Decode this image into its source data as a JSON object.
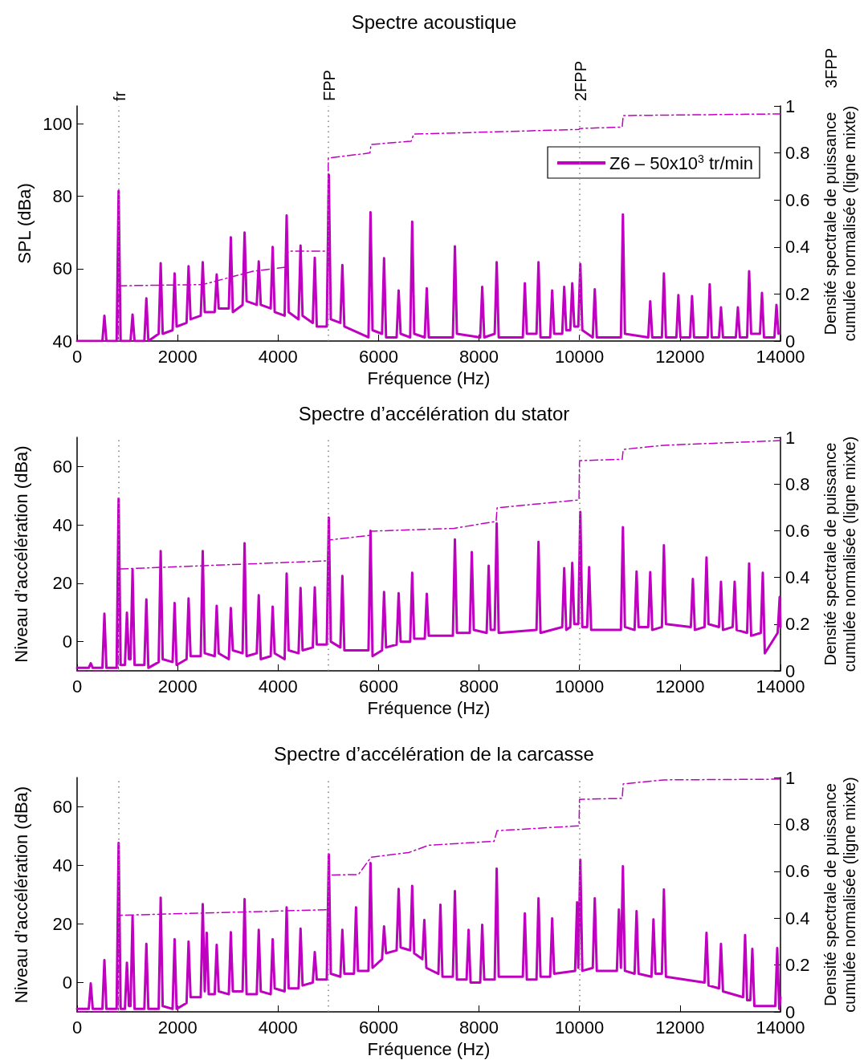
{
  "chart_data": [
    {
      "type": "line",
      "title": "Spectre acoustique",
      "xlabel": "Fréquence (Hz)",
      "ylabel": "SPL (dBa)",
      "y2label": "Densité spectrale de puissance\ncumulée normalisée (ligne mixte)",
      "xlim": [
        0,
        14000
      ],
      "xticks": [
        0,
        2000,
        4000,
        6000,
        8000,
        10000,
        12000,
        14000
      ],
      "ylim": [
        40,
        105
      ],
      "yticks": [
        40,
        60,
        80,
        100
      ],
      "y2lim": [
        0,
        1
      ],
      "y2ticks": [
        0,
        0.2,
        0.4,
        0.6,
        0.8,
        1
      ],
      "grid": false,
      "legend": "top right",
      "marker": "none",
      "annotations": [
        "3FPP"
      ],
      "ref_lines": [
        {
          "axis": "x",
          "value": 833,
          "label": "fr",
          "color": "#808080",
          "line_style": "dotted"
        },
        {
          "axis": "x",
          "value": 5000,
          "label": "FPP",
          "color": "#808080",
          "line_style": "dotted"
        },
        {
          "axis": "x",
          "value": 10000,
          "label": "2FPP",
          "color": "#808080",
          "line_style": "dotted"
        }
      ],
      "series": [
        {
          "name": "Z6 – 50x10$^{3}$ tr/min",
          "color": "#c000c0",
          "line_style": "solid",
          "x": [
            0,
            504,
            544,
            584,
            787,
            827,
            867,
            1064,
            1104,
            1144,
            1339,
            1379,
            1419,
            1624,
            1664,
            1704,
            1901,
            1941,
            1981,
            2179,
            2219,
            2259,
            2461,
            2501,
            2541,
            2739,
            2779,
            2819,
            3020,
            3060,
            3100,
            3294,
            3334,
            3374,
            3576,
            3616,
            3656,
            3853,
            3893,
            3933,
            4131,
            4171,
            4211,
            4408,
            4448,
            4488,
            4691,
            4731,
            4771,
            4970,
            5010,
            5050,
            5240,
            5280,
            5320,
            5800,
            5840,
            5880,
            6070,
            6110,
            6150,
            6360,
            6400,
            6440,
            6630,
            6670,
            6710,
            6920,
            6960,
            7000,
            7480,
            7520,
            7560,
            8024,
            8064,
            8104,
            8312,
            8352,
            8392,
            8872,
            8912,
            8952,
            9144,
            9184,
            9224,
            9416,
            9456,
            9496,
            9656,
            9696,
            9736,
            9816,
            9856,
            9896,
            9976,
            10016,
            10056,
            10264,
            10304,
            10344,
            10824,
            10864,
            10904,
            11368,
            11408,
            11448,
            11640,
            11680,
            11720,
            11928,
            11968,
            12008,
            12200,
            12240,
            12280,
            12552,
            12592,
            12632,
            12776,
            12816,
            12856,
            13112,
            13152,
            13192,
            13336,
            13376,
            13416,
            13592,
            13632,
            13672,
            13880,
            13920,
            13960
          ],
          "values": [
            40,
            40,
            47,
            40,
            40,
            81.5,
            40,
            40,
            47.3,
            40,
            40,
            51.8,
            40,
            42,
            61.5,
            42,
            43,
            58.7,
            44,
            45,
            60.7,
            46,
            47,
            61.8,
            48,
            48,
            58.4,
            49,
            49,
            68.7,
            48,
            50,
            70,
            51,
            50,
            62,
            50,
            49,
            66,
            48,
            47,
            74.7,
            48,
            46,
            66.4,
            47,
            45,
            63,
            44,
            44,
            86,
            46,
            45,
            61,
            44,
            41,
            75.6,
            43,
            42,
            62.9,
            41,
            41,
            54,
            42,
            41,
            73,
            42,
            41,
            54.6,
            41,
            41,
            66.2,
            42,
            41,
            55,
            41,
            42,
            61.8,
            41,
            41,
            56,
            42,
            42,
            61.8,
            41,
            41,
            54,
            42,
            42,
            55,
            43,
            43,
            56,
            44,
            44,
            61.3,
            43,
            41,
            54.3,
            41,
            41,
            75,
            42,
            41,
            51,
            41,
            41,
            58.7,
            41,
            41,
            52.7,
            41,
            41,
            52.4,
            41,
            41,
            55.7,
            41,
            41,
            49.3,
            41,
            41,
            49.3,
            41,
            41,
            59.3,
            42,
            42,
            53.3,
            41,
            41,
            50,
            42
          ]
        },
        {
          "color": "#c000c0",
          "axis": "y2",
          "line_style": "dashed",
          "x": [
            0,
            820,
            830,
            2500,
            3500,
            4150,
            4200,
            4990,
            5000,
            5830,
            5850,
            6650,
            6700,
            9990,
            10000,
            10850,
            10870,
            14000
          ],
          "values": [
            0,
            0,
            0.235,
            0.24,
            0.297,
            0.314,
            0.382,
            0.382,
            0.778,
            0.8,
            0.836,
            0.85,
            0.88,
            0.9,
            0.904,
            0.91,
            0.959,
            0.966
          ]
        }
      ]
    },
    {
      "type": "line",
      "title": "Spectre d’accélération du stator",
      "xlabel": "Fréquence (Hz)",
      "ylabel": "Niveau d’accélération (dBa)",
      "y2label": "Densité spectrale de puissance\ncumulée normalisée (ligne mixte)",
      "xlim": [
        0,
        14000
      ],
      "xticks": [
        0,
        2000,
        4000,
        6000,
        8000,
        10000,
        12000,
        14000
      ],
      "ylim": [
        -10,
        70
      ],
      "yticks": [
        0,
        20,
        40,
        60
      ],
      "y2lim": [
        0,
        1
      ],
      "y2ticks": [
        0,
        0.2,
        0.4,
        0.6,
        0.8,
        1
      ],
      "grid": false,
      "marker": "none",
      "ref_lines": [
        {
          "axis": "x",
          "value": 833,
          "label": null,
          "color": "#808080",
          "line_style": "dotted"
        },
        {
          "axis": "x",
          "value": 5000,
          "label": null,
          "color": "#808080",
          "line_style": "dotted"
        },
        {
          "axis": "x",
          "value": 10000,
          "label": null,
          "color": "#808080",
          "line_style": "dotted"
        }
      ],
      "series": [
        {
          "color": "#c000c0",
          "line_style": "solid",
          "x": [
            0,
            232,
            272,
            312,
            504,
            544,
            584,
            787,
            827,
            867,
            952,
            992,
            1032,
            1064,
            1104,
            1144,
            1339,
            1379,
            1419,
            1624,
            1664,
            1704,
            1901,
            1941,
            1981,
            2179,
            2219,
            2259,
            2461,
            2501,
            2541,
            2739,
            2779,
            2819,
            3020,
            3060,
            3100,
            3294,
            3334,
            3374,
            3576,
            3616,
            3656,
            3853,
            3893,
            3933,
            4131,
            4171,
            4211,
            4408,
            4448,
            4488,
            4691,
            4731,
            4771,
            4970,
            5010,
            5050,
            5240,
            5280,
            5320,
            5800,
            5840,
            5880,
            6070,
            6110,
            6150,
            6360,
            6400,
            6440,
            6630,
            6670,
            6710,
            6920,
            6960,
            7000,
            7480,
            7520,
            7560,
            7816,
            7856,
            7896,
            8152,
            8192,
            8232,
            8312,
            8352,
            8392,
            9144,
            9184,
            9224,
            9656,
            9696,
            9736,
            9816,
            9856,
            9896,
            9976,
            10016,
            10056,
            10152,
            10192,
            10232,
            10824,
            10864,
            10904,
            11096,
            11136,
            11176,
            11368,
            11408,
            11448,
            11640,
            11680,
            11720,
            12216,
            12256,
            12296,
            12488,
            12528,
            12568,
            12776,
            12816,
            12856,
            13048,
            13088,
            13128,
            13336,
            13376,
            13416,
            13608,
            13648,
            13688,
            13944,
            13984,
            14000
          ],
          "values": [
            -9,
            -9,
            -7.4,
            -9,
            -9,
            9.6,
            -9,
            -9,
            49,
            -8,
            -8,
            9.9,
            -6,
            -6,
            24.7,
            -8,
            -8,
            14.5,
            -9,
            -7,
            31,
            -6,
            -7,
            13.2,
            -8,
            -6,
            14.8,
            -5,
            -5,
            31,
            -4,
            -5,
            12.3,
            -4,
            -6,
            11.5,
            -3,
            -4,
            33.7,
            -5,
            -4,
            15.9,
            -6,
            -5,
            12,
            -4,
            -6,
            23.3,
            -3,
            -4,
            18.4,
            -3,
            -2,
            18.6,
            -1,
            -1,
            42.5,
            0,
            -2,
            22.5,
            -3,
            -3,
            38,
            -5,
            -3,
            17,
            -2,
            -1,
            16.6,
            0,
            0,
            23.6,
            1,
            1,
            16.4,
            2,
            2,
            35,
            3,
            3,
            30.7,
            4,
            3,
            26,
            4,
            4,
            40.5,
            3,
            4,
            34.2,
            3,
            5,
            25.2,
            4,
            5,
            27,
            6,
            6,
            44.4,
            5,
            5,
            25.5,
            4,
            4,
            39.2,
            5,
            4,
            24,
            5,
            5,
            23.8,
            4,
            5,
            33,
            6,
            5,
            21.5,
            4,
            5,
            28.8,
            6,
            5,
            20.5,
            4,
            5,
            20.5,
            4,
            3,
            26.8,
            2,
            3,
            23.6,
            -4,
            3,
            15.3,
            5
          ]
        },
        {
          "color": "#c000c0",
          "axis": "y2",
          "line_style": "dashed",
          "x": [
            0,
            820,
            830,
            4990,
            5000,
            5830,
            5850,
            7500,
            8340,
            8360,
            9990,
            10000,
            10850,
            10870,
            11680,
            14000
          ],
          "values": [
            0,
            0,
            0.436,
            0.471,
            0.56,
            0.58,
            0.598,
            0.61,
            0.64,
            0.698,
            0.732,
            0.9,
            0.906,
            0.948,
            0.966,
            0.986
          ]
        }
      ]
    },
    {
      "type": "line",
      "title": "Spectre d’accélération de la carcasse",
      "xlabel": "Fréquence (Hz)",
      "ylabel": "Niveau d’accélération (dBa)",
      "y2label": "Densité spectrale de puissance\ncumulée normalisée (ligne mixte)",
      "xlim": [
        0,
        14000
      ],
      "xticks": [
        0,
        2000,
        4000,
        6000,
        8000,
        10000,
        12000,
        14000
      ],
      "ylim": [
        -10,
        70
      ],
      "yticks": [
        0,
        20,
        40,
        60
      ],
      "y2lim": [
        0,
        1
      ],
      "y2ticks": [
        0,
        0.2,
        0.4,
        0.6,
        0.8,
        1
      ],
      "grid": false,
      "marker": "none",
      "ref_lines": [
        {
          "axis": "x",
          "value": 833,
          "label": null,
          "color": "#808080",
          "line_style": "dotted"
        },
        {
          "axis": "x",
          "value": 5000,
          "label": null,
          "color": "#808080",
          "line_style": "dotted"
        },
        {
          "axis": "x",
          "value": 10000,
          "label": null,
          "color": "#808080",
          "line_style": "dotted"
        }
      ],
      "series": [
        {
          "color": "#c000c0",
          "line_style": "solid",
          "x": [
            0,
            232,
            272,
            312,
            504,
            544,
            584,
            787,
            827,
            867,
            952,
            992,
            1032,
            1064,
            1104,
            1144,
            1339,
            1379,
            1419,
            1624,
            1664,
            1704,
            1901,
            1941,
            1981,
            2179,
            2219,
            2259,
            2461,
            2501,
            2541,
            2580,
            2620,
            2739,
            2779,
            2819,
            3020,
            3060,
            3100,
            3294,
            3334,
            3374,
            3576,
            3616,
            3656,
            3853,
            3893,
            3933,
            4131,
            4171,
            4211,
            4408,
            4448,
            4488,
            4691,
            4731,
            4771,
            4970,
            5010,
            5050,
            5240,
            5280,
            5320,
            5512,
            5552,
            5592,
            5800,
            5840,
            5880,
            6070,
            6110,
            6150,
            6360,
            6400,
            6440,
            6630,
            6670,
            6710,
            6872,
            6912,
            6952,
            7192,
            7232,
            7272,
            7480,
            7520,
            7560,
            7752,
            7792,
            7832,
            8024,
            8064,
            8104,
            8312,
            8352,
            8392,
            8872,
            8912,
            8952,
            9144,
            9184,
            9224,
            9416,
            9456,
            9496,
            9912,
            9952,
            9976,
            10016,
            10056,
            10264,
            10304,
            10344,
            10744,
            10784,
            10824,
            10864,
            10904,
            11096,
            11136,
            11176,
            11432,
            11472,
            11512,
            11640,
            11680,
            11720,
            12488,
            12528,
            12568,
            12776,
            12816,
            12856,
            13256,
            13296,
            13336,
            13400,
            13440,
            13480,
            13896,
            13936,
            13976,
            14000
          ],
          "values": [
            -9,
            -9,
            -0.3,
            -9,
            -9,
            7.7,
            -9,
            -9,
            47.7,
            -9,
            -9,
            6.8,
            -8,
            -8,
            22.7,
            -9,
            -9,
            13.2,
            -9,
            -9,
            29,
            -8,
            -9,
            14.8,
            -9,
            -7,
            14,
            -5,
            -5,
            26.8,
            -3,
            17,
            -4,
            -4,
            12.9,
            -3,
            -4,
            17.2,
            -3,
            -3,
            28.5,
            -4,
            -4,
            18,
            -3,
            -4,
            14.8,
            -2,
            -3,
            25.7,
            -2,
            -2,
            18.4,
            -1,
            0,
            10.4,
            1,
            1,
            43.8,
            3,
            2,
            18,
            3,
            3,
            25.7,
            4,
            4,
            40.8,
            5,
            8,
            19.2,
            10,
            11,
            32,
            12,
            11,
            33,
            10,
            8,
            21.4,
            5,
            3,
            26.6,
            2,
            2,
            31.2,
            1,
            1,
            18,
            0,
            0,
            19.7,
            1,
            1,
            38.9,
            2,
            2,
            23.6,
            1,
            1,
            28.8,
            2,
            2,
            21.9,
            3,
            4,
            27.4,
            5,
            41.9,
            4,
            5,
            28.8,
            4,
            4,
            24.9,
            5,
            39.7,
            4,
            3,
            24.4,
            3,
            2,
            21.6,
            3,
            3,
            31.8,
            2,
            0,
            17,
            -1,
            -2,
            13.2,
            -3,
            -5,
            16.2,
            -6,
            -6,
            11.5,
            -8,
            -8,
            11.8,
            -9,
            -5
          ]
        },
        {
          "color": "#c000c0",
          "axis": "y2",
          "line_style": "dashed",
          "x": [
            0,
            820,
            830,
            4990,
            5000,
            5600,
            5850,
            6600,
            7000,
            8300,
            8360,
            9990,
            10000,
            10850,
            10870,
            11680,
            14000
          ],
          "values": [
            0,
            0,
            0.412,
            0.436,
            0.584,
            0.586,
            0.66,
            0.68,
            0.711,
            0.728,
            0.773,
            0.794,
            0.907,
            0.911,
            0.973,
            0.99,
            0.993
          ]
        }
      ]
    }
  ]
}
